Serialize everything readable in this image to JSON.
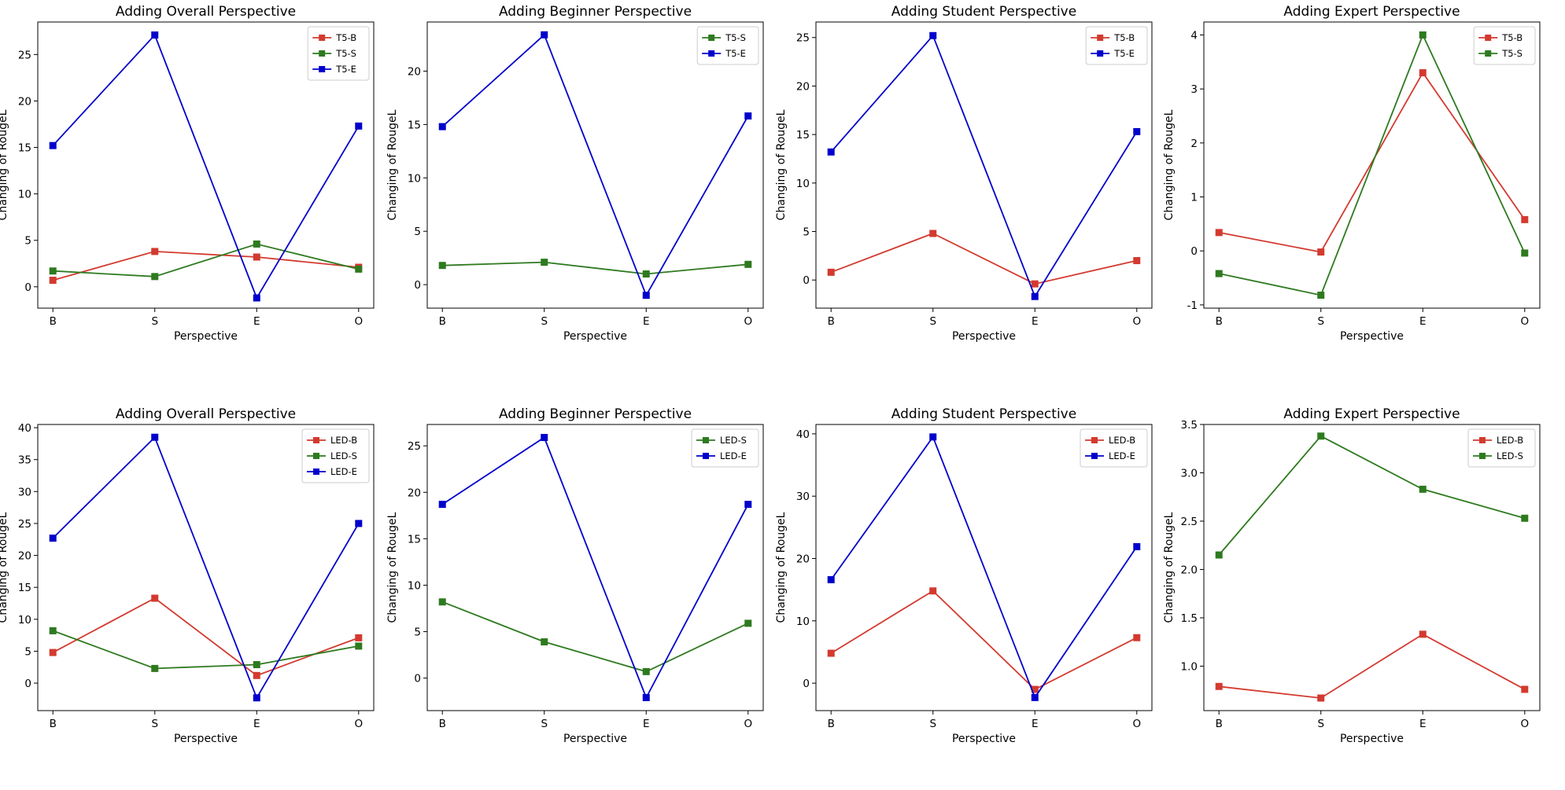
{
  "colors": {
    "red": "#d33a2f",
    "green": "#2e7a1f",
    "blue": "#0000cc"
  },
  "chart_data": [
    {
      "type": "line",
      "title": "Adding Overall Perspective",
      "xlabel": "Perspective",
      "ylabel": "Changing of RougeL",
      "categories": [
        "B",
        "S",
        "E",
        "O"
      ],
      "ylim": [
        -2.3,
        28.5
      ],
      "yticks": [
        0,
        5,
        10,
        15,
        20,
        25
      ],
      "grid": false,
      "legend_position": "top-right",
      "series": [
        {
          "name": "T5-B",
          "color": "red",
          "values": [
            0.7,
            3.8,
            3.2,
            2.1
          ]
        },
        {
          "name": "T5-S",
          "color": "green",
          "values": [
            1.7,
            1.1,
            4.6,
            1.9
          ]
        },
        {
          "name": "T5-E",
          "color": "blue",
          "values": [
            15.2,
            27.1,
            -1.2,
            17.3
          ]
        }
      ]
    },
    {
      "type": "line",
      "title": "Adding Beginner Perspective",
      "xlabel": "Perspective",
      "ylabel": "Changing of RougeL",
      "categories": [
        "B",
        "S",
        "E",
        "O"
      ],
      "ylim": [
        -2.2,
        24.6
      ],
      "yticks": [
        0,
        5,
        10,
        15,
        20
      ],
      "grid": false,
      "legend_position": "top-right",
      "series": [
        {
          "name": "T5-S",
          "color": "green",
          "values": [
            1.8,
            2.1,
            1.0,
            1.9
          ]
        },
        {
          "name": "T5-E",
          "color": "blue",
          "values": [
            14.8,
            23.4,
            -1.0,
            15.8
          ]
        }
      ]
    },
    {
      "type": "line",
      "title": "Adding Student Perspective",
      "xlabel": "Perspective",
      "ylabel": "Changing of RougeL",
      "categories": [
        "B",
        "S",
        "E",
        "O"
      ],
      "ylim": [
        -2.9,
        26.6
      ],
      "yticks": [
        0,
        5,
        10,
        15,
        20,
        25
      ],
      "grid": false,
      "legend_position": "top-right",
      "series": [
        {
          "name": "T5-B",
          "color": "red",
          "values": [
            0.8,
            4.8,
            -0.4,
            2.0
          ]
        },
        {
          "name": "T5-E",
          "color": "blue",
          "values": [
            13.2,
            25.2,
            -1.7,
            15.3
          ]
        }
      ]
    },
    {
      "type": "line",
      "title": "Adding Expert Perspective",
      "xlabel": "Perspective",
      "ylabel": "Changing of RougeL",
      "categories": [
        "B",
        "S",
        "E",
        "O"
      ],
      "ylim": [
        -1.06,
        4.24
      ],
      "yticks": [
        -1,
        0,
        1,
        2,
        3,
        4
      ],
      "grid": false,
      "legend_position": "top-right",
      "series": [
        {
          "name": "T5-B",
          "color": "red",
          "values": [
            0.34,
            -0.02,
            3.3,
            0.58
          ]
        },
        {
          "name": "T5-S",
          "color": "green",
          "values": [
            -0.42,
            -0.82,
            4.0,
            -0.04
          ]
        }
      ]
    },
    {
      "type": "line",
      "title": "Adding Overall Perspective",
      "xlabel": "Perspective",
      "ylabel": "Changing of RougeL",
      "categories": [
        "B",
        "S",
        "E",
        "O"
      ],
      "ylim": [
        -4.3,
        40.5
      ],
      "yticks": [
        0,
        5,
        10,
        15,
        20,
        25,
        30,
        35,
        40
      ],
      "grid": false,
      "legend_position": "top-right",
      "series": [
        {
          "name": "LED-B",
          "color": "red",
          "values": [
            4.8,
            13.3,
            1.2,
            7.1
          ]
        },
        {
          "name": "LED-S",
          "color": "green",
          "values": [
            8.2,
            2.3,
            2.9,
            5.8
          ]
        },
        {
          "name": "LED-E",
          "color": "blue",
          "values": [
            22.7,
            38.5,
            -2.3,
            25.0
          ]
        }
      ]
    },
    {
      "type": "line",
      "title": "Adding Beginner Perspective",
      "xlabel": "Perspective",
      "ylabel": "Changing of RougeL",
      "categories": [
        "B",
        "S",
        "E",
        "O"
      ],
      "ylim": [
        -3.5,
        27.3
      ],
      "yticks": [
        0,
        5,
        10,
        15,
        20,
        25
      ],
      "grid": false,
      "legend_position": "top-right",
      "series": [
        {
          "name": "LED-S",
          "color": "green",
          "values": [
            8.2,
            3.9,
            0.7,
            5.9
          ]
        },
        {
          "name": "LED-E",
          "color": "blue",
          "values": [
            18.7,
            25.9,
            -2.1,
            18.7
          ]
        }
      ]
    },
    {
      "type": "line",
      "title": "Adding Student Perspective",
      "xlabel": "Perspective",
      "ylabel": "Changing of RougeL",
      "categories": [
        "B",
        "S",
        "E",
        "O"
      ],
      "ylim": [
        -4.4,
        41.5
      ],
      "yticks": [
        0,
        10,
        20,
        30,
        40
      ],
      "grid": false,
      "legend_position": "top-right",
      "series": [
        {
          "name": "LED-B",
          "color": "red",
          "values": [
            4.8,
            14.8,
            -1.0,
            7.3
          ]
        },
        {
          "name": "LED-E",
          "color": "blue",
          "values": [
            16.6,
            39.5,
            -2.3,
            21.9
          ]
        }
      ]
    },
    {
      "type": "line",
      "title": "Adding Expert Perspective",
      "xlabel": "Perspective",
      "ylabel": "Changing of RougeL",
      "categories": [
        "B",
        "S",
        "E",
        "O"
      ],
      "ylim": [
        0.54,
        3.5
      ],
      "yticks": [
        1.0,
        1.5,
        2.0,
        2.5,
        3.0,
        3.5
      ],
      "tick_decimals": 1,
      "grid": false,
      "legend_position": "top-right",
      "series": [
        {
          "name": "LED-B",
          "color": "red",
          "values": [
            0.79,
            0.67,
            1.33,
            0.76
          ]
        },
        {
          "name": "LED-S",
          "color": "green",
          "values": [
            2.15,
            3.38,
            2.83,
            2.53
          ]
        }
      ]
    }
  ]
}
